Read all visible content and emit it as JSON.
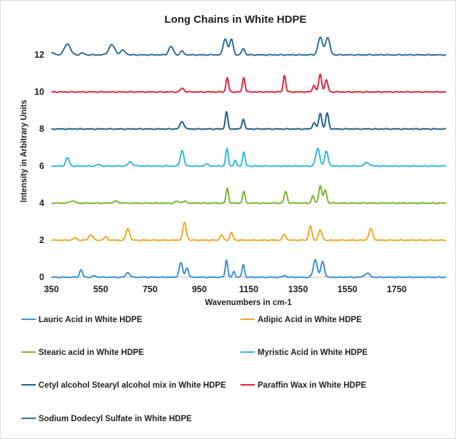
{
  "chart_data": {
    "type": "line",
    "title": "Long Chains in White HDPE",
    "xlabel": "Wavenumbers in cm-1",
    "ylabel": "Intensity in Arbitrary Units",
    "xlim": [
      350,
      1950
    ],
    "ylim": [
      0,
      13
    ],
    "x_ticks": [
      "350",
      "550",
      "750",
      "950",
      "1150",
      "1350",
      "1550",
      "1750"
    ],
    "y_ticks": [
      "0",
      "2",
      "4",
      "6",
      "8",
      "10",
      "12"
    ],
    "grid": false,
    "legend_position": "bottom",
    "series": [
      {
        "name": "Lauric Acid in White HDPE",
        "color": "#3a8fd8",
        "offset": 0,
        "peaks": [
          [
            470,
            0.4,
            6
          ],
          [
            525,
            0.08,
            6
          ],
          [
            660,
            0.25,
            8
          ],
          [
            875,
            0.78,
            7
          ],
          [
            900,
            0.5,
            6
          ],
          [
            1060,
            0.92,
            5
          ],
          [
            1090,
            0.3,
            5
          ],
          [
            1128,
            0.68,
            5
          ],
          [
            1295,
            0.1,
            6
          ],
          [
            1420,
            0.95,
            8
          ],
          [
            1450,
            0.85,
            7
          ],
          [
            1630,
            0.22,
            10
          ]
        ]
      },
      {
        "name": "Adipic Acid in White HDPE",
        "color": "#f5a623",
        "offset": 2,
        "peaks": [
          [
            445,
            0.12,
            8
          ],
          [
            510,
            0.3,
            8
          ],
          [
            570,
            0.18,
            7
          ],
          [
            660,
            0.65,
            7
          ],
          [
            890,
            0.95,
            7
          ],
          [
            1040,
            0.3,
            6
          ],
          [
            1080,
            0.4,
            6
          ],
          [
            1295,
            0.3,
            7
          ],
          [
            1400,
            0.78,
            6
          ],
          [
            1440,
            0.55,
            7
          ],
          [
            1645,
            0.6,
            8
          ]
        ]
      },
      {
        "name": "Stearic acid in White HDPE",
        "color": "#7ab52e",
        "offset": 4,
        "peaks": [
          [
            435,
            0.12,
            10
          ],
          [
            610,
            0.1,
            10
          ],
          [
            860,
            0.1,
            8
          ],
          [
            890,
            0.1,
            8
          ],
          [
            1063,
            0.8,
            5
          ],
          [
            1130,
            0.62,
            5
          ],
          [
            1300,
            0.62,
            6
          ],
          [
            1410,
            0.4,
            5
          ],
          [
            1440,
            0.95,
            6
          ],
          [
            1460,
            0.72,
            6
          ]
        ]
      },
      {
        "name": "Myristic Acid in White HDPE",
        "color": "#2eb8e6",
        "offset": 6,
        "peaks": [
          [
            415,
            0.45,
            7
          ],
          [
            540,
            0.08,
            8
          ],
          [
            670,
            0.22,
            9
          ],
          [
            880,
            0.85,
            7
          ],
          [
            980,
            0.1,
            8
          ],
          [
            1062,
            0.95,
            5
          ],
          [
            1095,
            0.3,
            5
          ],
          [
            1130,
            0.75,
            5
          ],
          [
            1430,
            0.95,
            8
          ],
          [
            1465,
            0.8,
            7
          ],
          [
            1630,
            0.18,
            10
          ]
        ]
      },
      {
        "name": "Cetyl alcohol Stearyl alcohol mix in White HDPE",
        "color": "#1f5f87",
        "offset": 8,
        "peaks": [
          [
            880,
            0.4,
            8
          ],
          [
            1060,
            0.92,
            5
          ],
          [
            1128,
            0.55,
            5
          ],
          [
            1415,
            0.35,
            6
          ],
          [
            1440,
            0.85,
            6
          ],
          [
            1468,
            0.85,
            6
          ]
        ]
      },
      {
        "name": "Paraffin Wax in White HDPE",
        "color": "#e0243c",
        "offset": 10,
        "peaks": [
          [
            880,
            0.2,
            7
          ],
          [
            1063,
            0.78,
            5
          ],
          [
            1130,
            0.78,
            5
          ],
          [
            1295,
            0.9,
            5
          ],
          [
            1415,
            0.35,
            6
          ],
          [
            1440,
            0.95,
            6
          ],
          [
            1465,
            0.65,
            6
          ]
        ]
      },
      {
        "name": "Sodium Dodecyl Sulfate in White HDPE",
        "color": "#2b6b9a",
        "offset": 12,
        "peaks": [
          [
            355,
            0.1,
            8
          ],
          [
            415,
            0.6,
            12
          ],
          [
            475,
            0.1,
            8
          ],
          [
            595,
            0.55,
            12
          ],
          [
            640,
            0.25,
            10
          ],
          [
            835,
            0.45,
            9
          ],
          [
            880,
            0.2,
            7
          ],
          [
            1055,
            0.88,
            8
          ],
          [
            1080,
            0.85,
            7
          ],
          [
            1128,
            0.35,
            6
          ],
          [
            1440,
            0.95,
            9
          ],
          [
            1470,
            0.92,
            9
          ]
        ]
      }
    ]
  }
}
